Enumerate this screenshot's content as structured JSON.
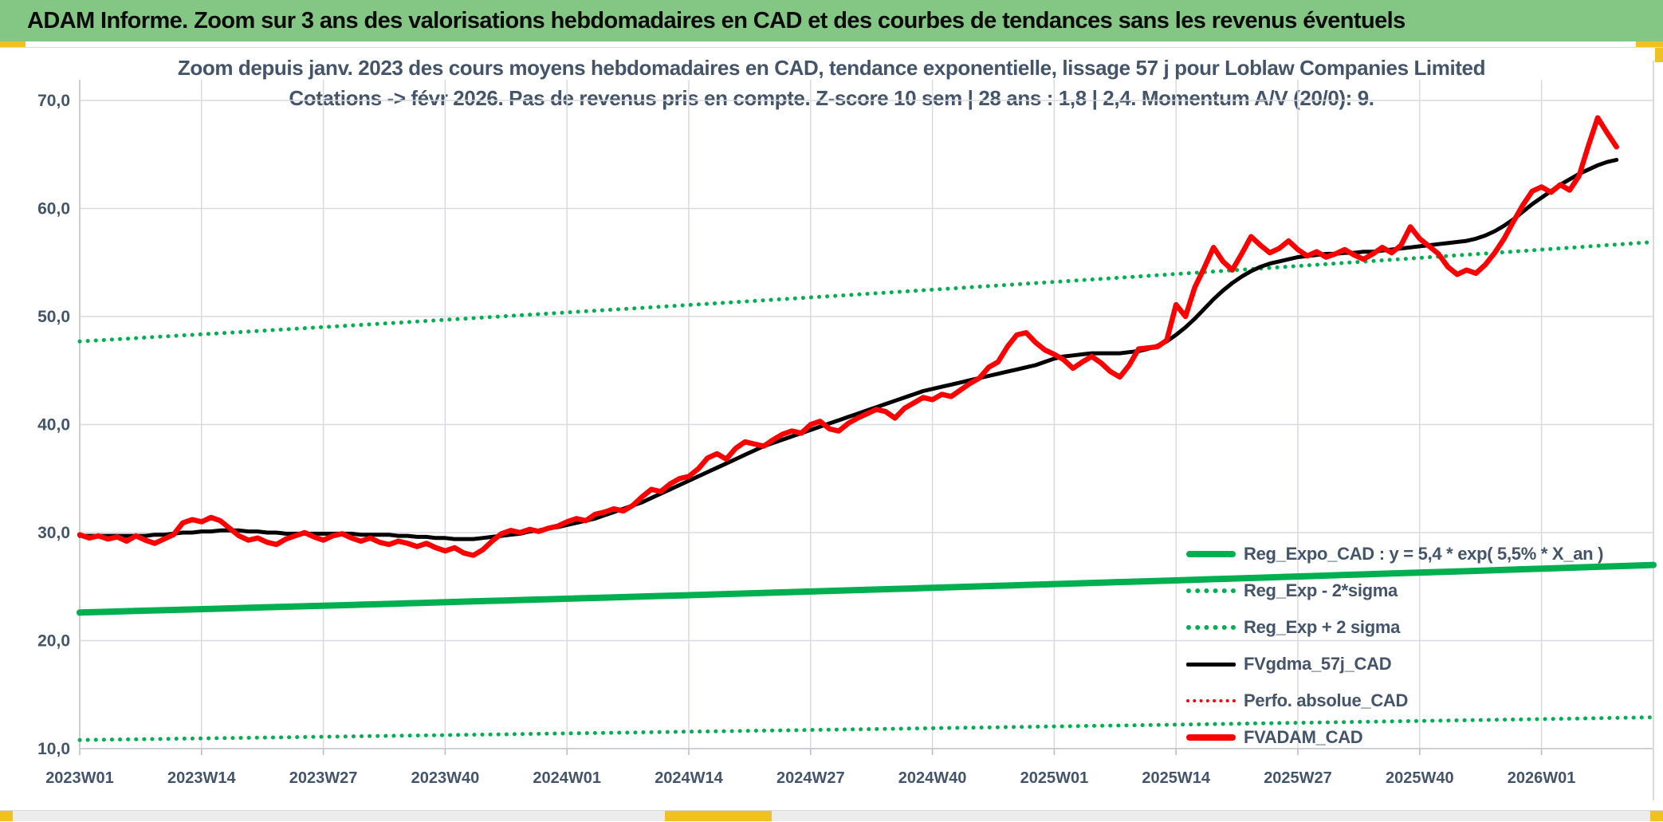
{
  "header": {
    "title": "ADAM Informe. Zoom sur 3 ans des valorisations hebdomadaires en CAD et des courbes de tendances sans les revenus éventuels"
  },
  "colors": {
    "header_green": "#84c683",
    "accent_yellow": "#efc222",
    "title_text": "#44546A",
    "grid": "#D7DAE0",
    "axis": "#C3C7CE",
    "series_green": "#00B050",
    "series_red": "#FF0000",
    "series_black": "#000000"
  },
  "legend": {
    "position": "inside-right-bottom",
    "items": [
      {
        "label": "Reg_Expo_CAD : y = 5,4 * exp( 5,5% *  X_an )",
        "style": "solid",
        "color": "#00B050"
      },
      {
        "label": "Reg_Exp - 2*sigma",
        "style": "dotted",
        "color": "#00B050"
      },
      {
        "label": "Reg_Exp + 2 sigma",
        "style": "dotted",
        "color": "#00B050"
      },
      {
        "label": "FVgdma_57j_CAD",
        "style": "solid",
        "color": "#000000"
      },
      {
        "label": "Perfo. absolue_CAD",
        "style": "dotted",
        "color": "#FF0000"
      },
      {
        "label": "FVADAM_CAD",
        "style": "solid",
        "color": "#FF0000"
      }
    ]
  },
  "chart_data": {
    "type": "line",
    "title": "Zoom depuis janv. 2023 des cours moyens hebdomadaires en CAD, tendance exponentielle, lissage 57 j pour Loblaw Companies Limited — Cotations -> févr 2026. Pas de revenus pris en compte. Z-score 10 sem | 28 ans : 1,8 | 2,4. Momentum A/V (20/0): 9.",
    "title_lines": [
      "Zoom depuis janv. 2023 des cours moyens hebdomadaires en CAD, tendance exponentielle, lissage 57 j pour Loblaw Companies Limited",
      "Cotations -> févr 2026. Pas de revenus pris en compte. Z-score 10 sem | 28 ans : 1,8 | 2,4. Momentum A/V (20/0): 9."
    ],
    "xlabel": "",
    "ylabel": "",
    "ylim": [
      10,
      70
    ],
    "grid": true,
    "x_unit": "ISO week (weekly close, CAD)",
    "x_start": "2023W01",
    "x_end": "2026W09",
    "x_ticks": [
      "2023W01",
      "2023W14",
      "2023W27",
      "2023W40",
      "2024W01",
      "2024W14",
      "2024W27",
      "2024W40",
      "2025W01",
      "2025W14",
      "2025W27",
      "2025W40",
      "2026W01"
    ],
    "y_ticks": [
      "10,0",
      "20,0",
      "30,0",
      "40,0",
      "50,0",
      "60,0",
      "70,0"
    ],
    "series": [
      {
        "name": "FVADAM_CAD",
        "color": "#FF0000",
        "style": "solid",
        "width": 6.5,
        "values": [
          29.8,
          29.5,
          29.7,
          29.4,
          29.6,
          29.2,
          29.7,
          29.3,
          29.0,
          29.4,
          29.8,
          30.9,
          31.2,
          31.0,
          31.4,
          31.1,
          30.4,
          29.7,
          29.3,
          29.5,
          29.1,
          28.9,
          29.4,
          29.7,
          30.0,
          29.6,
          29.3,
          29.7,
          29.9,
          29.5,
          29.2,
          29.5,
          29.1,
          28.9,
          29.2,
          29.0,
          28.7,
          29.0,
          28.6,
          28.3,
          28.6,
          28.1,
          27.9,
          28.4,
          29.2,
          29.9,
          30.2,
          30.0,
          30.3,
          30.1,
          30.4,
          30.6,
          31.0,
          31.3,
          31.1,
          31.7,
          31.9,
          32.2,
          32.0,
          32.5,
          33.3,
          34.0,
          33.8,
          34.5,
          35.0,
          35.2,
          35.9,
          36.9,
          37.3,
          36.8,
          37.8,
          38.4,
          38.2,
          38.0,
          38.6,
          39.1,
          39.4,
          39.2,
          40.0,
          40.3,
          39.6,
          39.4,
          40.1,
          40.6,
          41.0,
          41.4,
          41.2,
          40.6,
          41.5,
          42.0,
          42.5,
          42.3,
          42.8,
          42.6,
          43.2,
          43.8,
          44.3,
          45.3,
          45.8,
          47.2,
          48.3,
          48.5,
          47.6,
          46.9,
          46.5,
          46.0,
          45.2,
          45.8,
          46.3,
          45.7,
          44.9,
          44.4,
          45.5,
          47.0,
          47.1,
          47.2,
          47.8,
          51.1,
          50.0,
          52.7,
          54.5,
          56.4,
          55.1,
          54.3,
          55.8,
          57.4,
          56.6,
          55.9,
          56.3,
          57.0,
          56.2,
          55.6,
          56.0,
          55.5,
          55.8,
          56.2,
          55.7,
          55.3,
          55.8,
          56.4,
          55.9,
          56.6,
          58.3,
          57.2,
          56.5,
          55.8,
          54.6,
          53.9,
          54.3,
          54.0,
          54.8,
          55.9,
          57.2,
          58.8,
          60.3,
          61.6,
          62.0,
          61.5,
          62.2,
          61.7,
          63.0,
          65.8,
          68.4,
          67.0,
          65.7
        ]
      },
      {
        "name": "FVgdma_57j_CAD",
        "color": "#000000",
        "style": "solid",
        "width": 5,
        "values": [
          29.7,
          29.7,
          29.7,
          29.7,
          29.7,
          29.7,
          29.7,
          29.7,
          29.8,
          29.8,
          29.9,
          30.0,
          30.0,
          30.1,
          30.1,
          30.2,
          30.2,
          30.2,
          30.1,
          30.1,
          30.0,
          30.0,
          29.9,
          29.9,
          29.9,
          29.9,
          29.9,
          29.9,
          29.9,
          29.9,
          29.8,
          29.8,
          29.8,
          29.8,
          29.7,
          29.7,
          29.6,
          29.6,
          29.5,
          29.5,
          29.4,
          29.4,
          29.4,
          29.5,
          29.6,
          29.7,
          29.8,
          29.9,
          30.1,
          30.2,
          30.4,
          30.5,
          30.7,
          30.9,
          31.1,
          31.3,
          31.6,
          31.9,
          32.2,
          32.5,
          32.8,
          33.2,
          33.6,
          34.0,
          34.4,
          34.8,
          35.2,
          35.6,
          36.0,
          36.4,
          36.8,
          37.2,
          37.6,
          38.0,
          38.3,
          38.6,
          38.9,
          39.2,
          39.5,
          39.8,
          40.1,
          40.4,
          40.7,
          41.0,
          41.3,
          41.6,
          41.9,
          42.2,
          42.5,
          42.8,
          43.1,
          43.3,
          43.5,
          43.7,
          43.9,
          44.1,
          44.3,
          44.5,
          44.7,
          44.9,
          45.1,
          45.3,
          45.5,
          45.8,
          46.1,
          46.3,
          46.4,
          46.5,
          46.6,
          46.6,
          46.6,
          46.6,
          46.7,
          46.8,
          47.0,
          47.3,
          47.7,
          48.3,
          49.0,
          49.8,
          50.7,
          51.6,
          52.4,
          53.1,
          53.7,
          54.2,
          54.6,
          54.9,
          55.1,
          55.3,
          55.5,
          55.6,
          55.7,
          55.8,
          55.8,
          55.9,
          55.9,
          56.0,
          56.0,
          56.1,
          56.2,
          56.3,
          56.4,
          56.5,
          56.6,
          56.7,
          56.8,
          56.9,
          57.0,
          57.2,
          57.5,
          57.9,
          58.4,
          59.0,
          59.7,
          60.4,
          61.0,
          61.6,
          62.2,
          62.7,
          63.2,
          63.6,
          64.0,
          64.3,
          64.5
        ]
      },
      {
        "name": "Perfo. absolue_CAD",
        "color": "#FF0000",
        "style": "dotted",
        "width": 3,
        "coincides_with": "FVADAM_CAD",
        "note": "dotted red curve lies exactly under FVADAM_CAD, not separately visible"
      },
      {
        "name": "Reg_Expo_CAD",
        "color": "#00B050",
        "style": "solid",
        "width": 8,
        "formula": "y = 5,4 * exp( 5,5% * X_an )",
        "growth": "exponential",
        "start": 22.6,
        "end": 27.0
      },
      {
        "name": "Reg_Exp - 2*sigma",
        "color": "#00B050",
        "style": "dotted",
        "width": 5,
        "growth": "exponential",
        "start": 10.8,
        "end": 12.9
      },
      {
        "name": "Reg_Exp + 2 sigma",
        "color": "#00B050",
        "style": "dotted",
        "width": 5,
        "growth": "exponential",
        "start": 47.7,
        "end": 56.9
      }
    ]
  }
}
